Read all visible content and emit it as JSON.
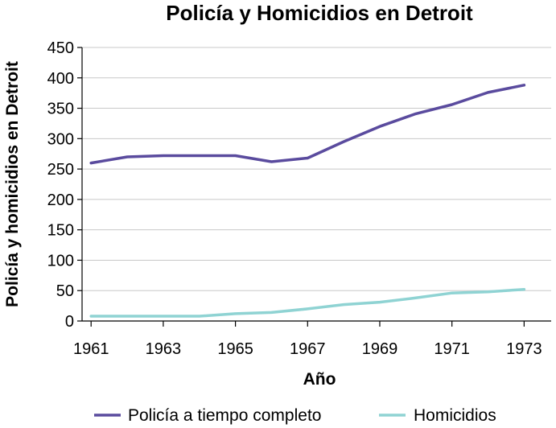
{
  "chart_data": {
    "type": "line",
    "title": "Policía y Homicidios en Detroit",
    "xlabel": "Año",
    "ylabel": "Policía y homicidios en Detroit",
    "xlim": [
      1960.75,
      1973.75
    ],
    "ylim": [
      0,
      450
    ],
    "x_ticks": [
      "1961",
      "1963",
      "1965",
      "1967",
      "1969",
      "1971",
      "1973"
    ],
    "y_ticks": [
      "0",
      "50",
      "100",
      "150",
      "200",
      "250",
      "300",
      "350",
      "400",
      "450"
    ],
    "grid": true,
    "legend_position": "bottom",
    "x": [
      1961,
      1962,
      1963,
      1964,
      1965,
      1966,
      1967,
      1968,
      1969,
      1970,
      1971,
      1972,
      1973
    ],
    "series": [
      {
        "name": "Policía a tiempo completo",
        "color": "#5a4b9e",
        "values": [
          260,
          270,
          272,
          272,
          272,
          262,
          268,
          295,
          320,
          341,
          356,
          376,
          388
        ]
      },
      {
        "name": "Homicidios",
        "color": "#8fd3d3",
        "values": [
          8,
          8,
          8,
          8,
          12,
          14,
          20,
          27,
          31,
          38,
          46,
          48,
          52
        ]
      }
    ]
  }
}
